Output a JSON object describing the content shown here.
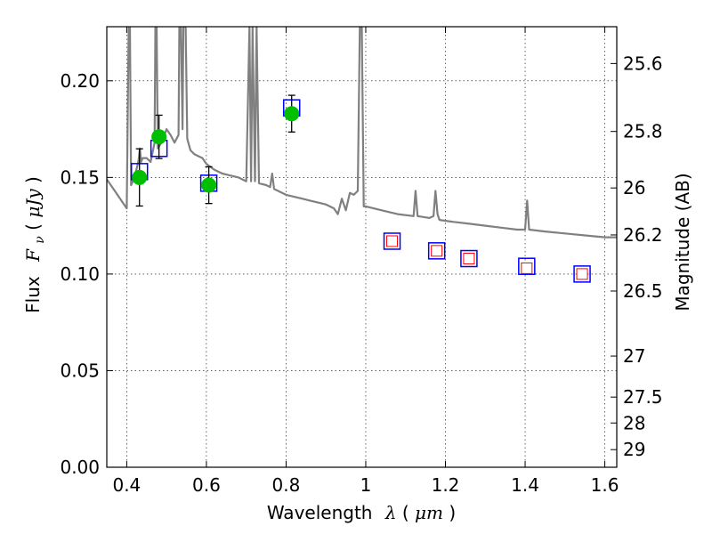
{
  "chart_data": {
    "type": "scatter",
    "xlabel": {
      "prefix": "Wavelength",
      "symbol": "λ",
      "open": " (",
      "unit": "μm",
      "close": ")"
    },
    "ylabel": {
      "prefix": "Flux",
      "symbol": "F",
      "sub": "ν",
      "open": " ( ",
      "unit": "μJy",
      "close": " )"
    },
    "ylabel_right": "Magnitude (AB)",
    "xlim": [
      0.35,
      1.63
    ],
    "ylim": [
      0.0,
      0.228
    ],
    "grid": true,
    "x_ticks": [
      {
        "value": 0.4,
        "label": "0.4"
      },
      {
        "value": 0.6,
        "label": "0.6"
      },
      {
        "value": 0.8,
        "label": "0.8"
      },
      {
        "value": 1.0,
        "label": "1"
      },
      {
        "value": 1.2,
        "label": "1.2"
      },
      {
        "value": 1.4,
        "label": "1.4"
      },
      {
        "value": 1.6,
        "label": "1.6"
      }
    ],
    "y_ticks": [
      {
        "value": 0.0,
        "label": "0.00"
      },
      {
        "value": 0.05,
        "label": "0.05"
      },
      {
        "value": 0.1,
        "label": "0.10"
      },
      {
        "value": 0.15,
        "label": "0.15"
      },
      {
        "value": 0.2,
        "label": "0.20"
      }
    ],
    "right_ticks": [
      {
        "value": 25.6,
        "label": "25.6"
      },
      {
        "value": 25.8,
        "label": "25.8"
      },
      {
        "value": 26.0,
        "label": "26"
      },
      {
        "value": 26.2,
        "label": "26.2"
      },
      {
        "value": 26.5,
        "label": "26.5"
      },
      {
        "value": 27.0,
        "label": "27"
      },
      {
        "value": 27.5,
        "label": "27.5"
      },
      {
        "value": 28.0,
        "label": "28"
      },
      {
        "value": 29.0,
        "label": "29"
      }
    ],
    "series": [
      {
        "kind": "model-spectrum",
        "color": "#808080",
        "points": [
          [
            0.35,
            0.149
          ],
          [
            0.37,
            0.143
          ],
          [
            0.39,
            0.137
          ],
          [
            0.4,
            0.134
          ],
          [
            0.405,
            0.228
          ],
          [
            0.408,
            0.228
          ],
          [
            0.411,
            0.146
          ],
          [
            0.42,
            0.15
          ],
          [
            0.43,
            0.159
          ],
          [
            0.433,
            0.165
          ],
          [
            0.436,
            0.158
          ],
          [
            0.44,
            0.16
          ],
          [
            0.45,
            0.16
          ],
          [
            0.46,
            0.158
          ],
          [
            0.47,
            0.168
          ],
          [
            0.472,
            0.228
          ],
          [
            0.475,
            0.228
          ],
          [
            0.478,
            0.165
          ],
          [
            0.49,
            0.169
          ],
          [
            0.5,
            0.175
          ],
          [
            0.51,
            0.172
          ],
          [
            0.52,
            0.168
          ],
          [
            0.53,
            0.172
          ],
          [
            0.532,
            0.228
          ],
          [
            0.536,
            0.228
          ],
          [
            0.54,
            0.175
          ],
          [
            0.542,
            0.228
          ],
          [
            0.548,
            0.228
          ],
          [
            0.552,
            0.17
          ],
          [
            0.56,
            0.164
          ],
          [
            0.57,
            0.162
          ],
          [
            0.58,
            0.161
          ],
          [
            0.59,
            0.16
          ],
          [
            0.6,
            0.157
          ],
          [
            0.62,
            0.154
          ],
          [
            0.64,
            0.152
          ],
          [
            0.66,
            0.151
          ],
          [
            0.68,
            0.15
          ],
          [
            0.7,
            0.148
          ],
          [
            0.708,
            0.228
          ],
          [
            0.712,
            0.148
          ],
          [
            0.716,
            0.228
          ],
          [
            0.722,
            0.148
          ],
          [
            0.726,
            0.228
          ],
          [
            0.732,
            0.147
          ],
          [
            0.75,
            0.146
          ],
          [
            0.76,
            0.145
          ],
          [
            0.765,
            0.152
          ],
          [
            0.77,
            0.144
          ],
          [
            0.78,
            0.143
          ],
          [
            0.8,
            0.141
          ],
          [
            0.82,
            0.14
          ],
          [
            0.84,
            0.139
          ],
          [
            0.86,
            0.138
          ],
          [
            0.88,
            0.137
          ],
          [
            0.9,
            0.136
          ],
          [
            0.92,
            0.134
          ],
          [
            0.93,
            0.131
          ],
          [
            0.94,
            0.139
          ],
          [
            0.95,
            0.133
          ],
          [
            0.96,
            0.142
          ],
          [
            0.97,
            0.141
          ],
          [
            0.98,
            0.143
          ],
          [
            0.985,
            0.228
          ],
          [
            0.99,
            0.228
          ],
          [
            0.995,
            0.135
          ],
          [
            1.0,
            0.135
          ],
          [
            1.04,
            0.133
          ],
          [
            1.08,
            0.131
          ],
          [
            1.12,
            0.13
          ],
          [
            1.125,
            0.143
          ],
          [
            1.13,
            0.13
          ],
          [
            1.16,
            0.129
          ],
          [
            1.17,
            0.13
          ],
          [
            1.175,
            0.143
          ],
          [
            1.18,
            0.131
          ],
          [
            1.185,
            0.128
          ],
          [
            1.22,
            0.127
          ],
          [
            1.26,
            0.126
          ],
          [
            1.3,
            0.125
          ],
          [
            1.34,
            0.124
          ],
          [
            1.38,
            0.123
          ],
          [
            1.4,
            0.123
          ],
          [
            1.405,
            0.138
          ],
          [
            1.41,
            0.123
          ],
          [
            1.45,
            0.122
          ],
          [
            1.5,
            0.121
          ],
          [
            1.55,
            0.12
          ],
          [
            1.6,
            0.119
          ],
          [
            1.63,
            0.119
          ]
        ]
      },
      {
        "kind": "observed",
        "color": "#00bf00",
        "points": [
          {
            "x": 0.432,
            "y": 0.15,
            "err": 0.0148
          },
          {
            "x": 0.481,
            "y": 0.171,
            "err": 0.0112
          },
          {
            "x": 0.606,
            "y": 0.146,
            "err": 0.0095
          },
          {
            "x": 0.814,
            "y": 0.183,
            "err": 0.0095
          }
        ]
      },
      {
        "kind": "model-photometry",
        "color": "#0000ff",
        "points": [
          {
            "x": 0.432,
            "y": 0.153
          },
          {
            "x": 0.481,
            "y": 0.165
          },
          {
            "x": 0.606,
            "y": 0.147
          },
          {
            "x": 0.814,
            "y": 0.186
          },
          {
            "x": 1.066,
            "y": 0.117
          },
          {
            "x": 1.178,
            "y": 0.112
          },
          {
            "x": 1.259,
            "y": 0.108
          },
          {
            "x": 1.404,
            "y": 0.104
          },
          {
            "x": 1.543,
            "y": 0.1
          }
        ]
      },
      {
        "kind": "predicted",
        "color": "#ff0000",
        "points": [
          {
            "x": 1.066,
            "y": 0.117
          },
          {
            "x": 1.178,
            "y": 0.112
          },
          {
            "x": 1.259,
            "y": 0.108
          },
          {
            "x": 1.404,
            "y": 0.103
          },
          {
            "x": 1.543,
            "y": 0.1
          }
        ]
      }
    ]
  }
}
